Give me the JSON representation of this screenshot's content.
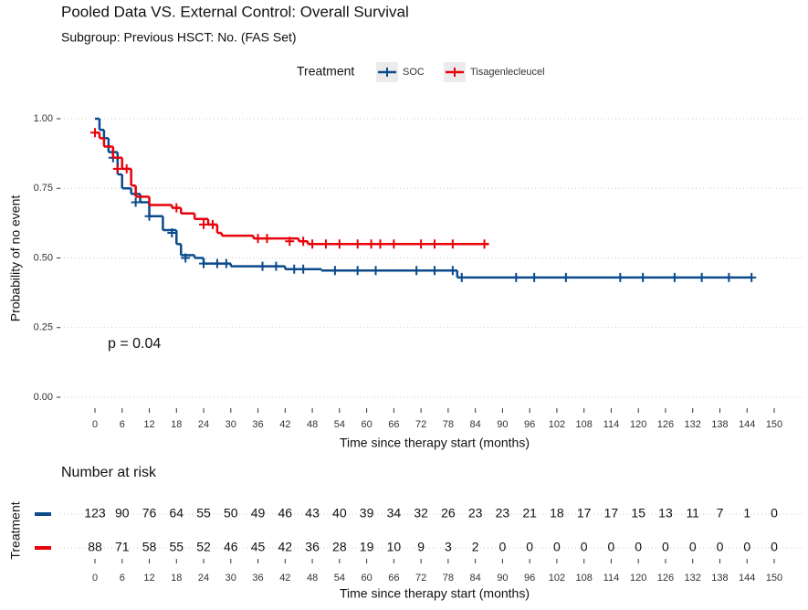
{
  "chart_data": {
    "type": "step",
    "title": "Pooled Data VS. External Control: Overall Survival",
    "subtitle": "Subgroup: Previous HSCT: No. (FAS Set)",
    "legend_title": "Treatment",
    "xlabel": "Time since therapy start (months)",
    "ylabel": "Probability of no event",
    "annotation": "p = 0.04",
    "xlim": [
      0,
      150
    ],
    "ylim": [
      0,
      1
    ],
    "xticks": [
      0,
      6,
      12,
      18,
      24,
      30,
      36,
      42,
      48,
      54,
      60,
      66,
      72,
      78,
      84,
      90,
      96,
      102,
      108,
      114,
      120,
      126,
      132,
      138,
      144,
      150
    ],
    "yticks": [
      {
        "value": 0,
        "label": "0.00"
      },
      {
        "value": 0.25,
        "label": "0.25"
      },
      {
        "value": 0.5,
        "label": "0.50"
      },
      {
        "value": 0.75,
        "label": "0.75"
      },
      {
        "value": 1,
        "label": "1.00"
      }
    ],
    "grid": true,
    "series": [
      {
        "name": "SOC",
        "color": "#0b4a8b",
        "x": [
          0,
          1,
          2,
          3,
          5,
          6,
          8,
          10,
          12,
          15,
          18,
          19,
          22,
          24,
          30,
          42,
          50,
          80,
          145
        ],
        "values": [
          1,
          0.96,
          0.93,
          0.88,
          0.8,
          0.75,
          0.73,
          0.7,
          0.65,
          0.6,
          0.55,
          0.51,
          0.5,
          0.48,
          0.47,
          0.46,
          0.455,
          0.43,
          0.43
        ],
        "censor_x": [
          4,
          9,
          12,
          17,
          20,
          24,
          27,
          29,
          37,
          40,
          44,
          46,
          53,
          58,
          62,
          71,
          75,
          79,
          81,
          93,
          97,
          104,
          116,
          121,
          128,
          134,
          140,
          145
        ],
        "censor_values": [
          0.86,
          0.7,
          0.65,
          0.59,
          0.5,
          0.48,
          0.48,
          0.48,
          0.47,
          0.47,
          0.46,
          0.46,
          0.455,
          0.455,
          0.455,
          0.455,
          0.455,
          0.455,
          0.43,
          0.43,
          0.43,
          0.43,
          0.43,
          0.43,
          0.43,
          0.43,
          0.43,
          0.43
        ]
      },
      {
        "name": "Tisagenlecleucel",
        "color": "#e8000b",
        "x": [
          0,
          1,
          2,
          4,
          6,
          8,
          9,
          12,
          17,
          19,
          22,
          25,
          27,
          28,
          35,
          45,
          47,
          87
        ],
        "values": [
          0.95,
          0.93,
          0.9,
          0.86,
          0.82,
          0.76,
          0.72,
          0.69,
          0.68,
          0.66,
          0.64,
          0.62,
          0.59,
          0.58,
          0.57,
          0.56,
          0.55,
          0.55
        ],
        "censor_x": [
          0,
          5,
          7,
          18,
          24,
          26,
          36,
          38,
          43,
          46,
          48,
          51,
          54,
          58,
          61,
          63,
          66,
          72,
          75,
          79,
          86
        ],
        "censor_values": [
          0.95,
          0.82,
          0.82,
          0.68,
          0.62,
          0.62,
          0.57,
          0.57,
          0.56,
          0.56,
          0.55,
          0.55,
          0.55,
          0.55,
          0.55,
          0.55,
          0.55,
          0.55,
          0.55,
          0.55,
          0.55
        ]
      }
    ],
    "risk_table": {
      "title": "Number at risk",
      "ylabel": "Treatment",
      "xlabel": "Time since therapy start (months)",
      "xticks": [
        0,
        6,
        12,
        18,
        24,
        30,
        36,
        42,
        48,
        54,
        60,
        66,
        72,
        78,
        84,
        90,
        96,
        102,
        108,
        114,
        120,
        126,
        132,
        138,
        144,
        150
      ],
      "rows": [
        [
          123,
          90,
          76,
          64,
          55,
          50,
          49,
          46,
          43,
          40,
          39,
          34,
          32,
          26,
          23,
          23,
          21,
          18,
          17,
          17,
          15,
          13,
          11,
          7,
          1,
          0
        ],
        [
          88,
          71,
          58,
          55,
          52,
          46,
          45,
          42,
          36,
          28,
          19,
          10,
          9,
          3,
          2,
          0,
          0,
          0,
          0,
          0,
          0,
          0,
          0,
          0,
          0,
          0
        ]
      ]
    }
  }
}
